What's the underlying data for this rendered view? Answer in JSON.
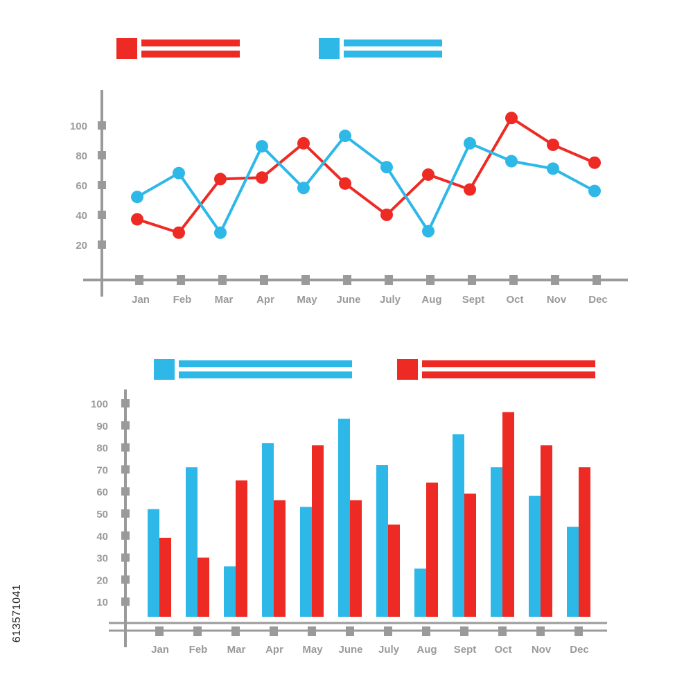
{
  "colors": {
    "red": "#ee2a24",
    "blue": "#2db8e8",
    "axis": "#9a9a9a"
  },
  "watermark_id": "613571041",
  "chart_data": [
    {
      "type": "line",
      "categories": [
        "Jan",
        "Feb",
        "Mar",
        "Apr",
        "May",
        "June",
        "July",
        "Aug",
        "Sept",
        "Oct",
        "Nov",
        "Dec"
      ],
      "yticks": [
        20,
        40,
        60,
        80,
        100
      ],
      "ylim": [
        0,
        115
      ],
      "grid": false,
      "legend": "top",
      "series": [
        {
          "color": "red",
          "values": [
            37,
            28,
            64,
            65,
            88,
            61,
            40,
            67,
            57,
            105,
            87,
            75
          ]
        },
        {
          "color": "blue",
          "values": [
            52,
            68,
            28,
            86,
            58,
            93,
            72,
            29,
            88,
            76,
            71,
            56
          ]
        }
      ]
    },
    {
      "type": "bar",
      "categories": [
        "Jan",
        "Feb",
        "Mar",
        "Apr",
        "May",
        "June",
        "July",
        "Aug",
        "Sept",
        "Oct",
        "Nov",
        "Dec"
      ],
      "yticks": [
        10,
        20,
        30,
        40,
        50,
        60,
        70,
        80,
        90,
        100
      ],
      "ylim": [
        0,
        100
      ],
      "grid": false,
      "legend": "top",
      "series": [
        {
          "color": "blue",
          "values": [
            52,
            71,
            26,
            82,
            53,
            93,
            72,
            25,
            86,
            71,
            58,
            44
          ]
        },
        {
          "color": "red",
          "values": [
            39,
            30,
            65,
            56,
            81,
            56,
            45,
            64,
            59,
            96,
            81,
            71
          ]
        }
      ]
    }
  ]
}
